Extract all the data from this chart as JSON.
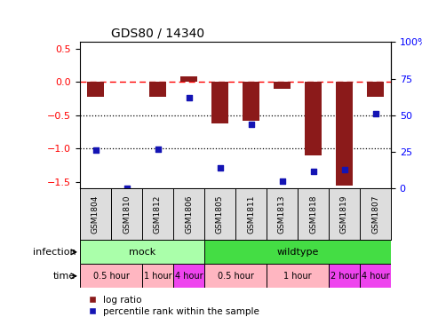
{
  "title": "GDS80 / 14340",
  "samples": [
    "GSM1804",
    "GSM1810",
    "GSM1812",
    "GSM1806",
    "GSM1805",
    "GSM1811",
    "GSM1813",
    "GSM1818",
    "GSM1819",
    "GSM1807"
  ],
  "log_ratio": [
    -0.22,
    0.0,
    -0.22,
    0.08,
    -0.62,
    -0.58,
    -0.1,
    -1.1,
    -1.55,
    -0.22
  ],
  "percentile": [
    26,
    0,
    27,
    62,
    14,
    44,
    5,
    12,
    13,
    51
  ],
  "ylim_left": [
    -1.6,
    0.6
  ],
  "ylim_right": [
    0,
    100
  ],
  "yticks_left": [
    -1.5,
    -1.0,
    -0.5,
    0.0,
    0.5
  ],
  "yticks_right": [
    0,
    25,
    50,
    75,
    100
  ],
  "hline_dashed": 0.0,
  "hlines_dotted": [
    -0.5,
    -1.0
  ],
  "bar_color": "#8B1A1A",
  "dot_color": "#1414B4",
  "infection_groups": [
    {
      "label": "mock",
      "start": 0,
      "end": 3,
      "color": "#AAFFAA"
    },
    {
      "label": "wildtype",
      "start": 4,
      "end": 9,
      "color": "#44DD44"
    }
  ],
  "time_groups": [
    {
      "label": "0.5 hour",
      "start": 0,
      "end": 1,
      "color": "#FFB6C1"
    },
    {
      "label": "1 hour",
      "start": 2,
      "end": 2,
      "color": "#FFB6C1"
    },
    {
      "label": "4 hour",
      "start": 3,
      "end": 3,
      "color": "#EE44EE"
    },
    {
      "label": "0.5 hour",
      "start": 4,
      "end": 5,
      "color": "#FFB6C1"
    },
    {
      "label": "1 hour",
      "start": 6,
      "end": 7,
      "color": "#FFB6C1"
    },
    {
      "label": "2 hour",
      "start": 8,
      "end": 8,
      "color": "#EE44EE"
    },
    {
      "label": "4 hour",
      "start": 9,
      "end": 9,
      "color": "#EE44EE"
    }
  ],
  "legend_label_log": "log ratio",
  "legend_label_pct": "percentile rank within the sample",
  "legend_color_log": "#8B1A1A",
  "legend_color_pct": "#1414B4",
  "right_tick_labels": [
    "0",
    "25",
    "50",
    "75",
    "100%"
  ]
}
